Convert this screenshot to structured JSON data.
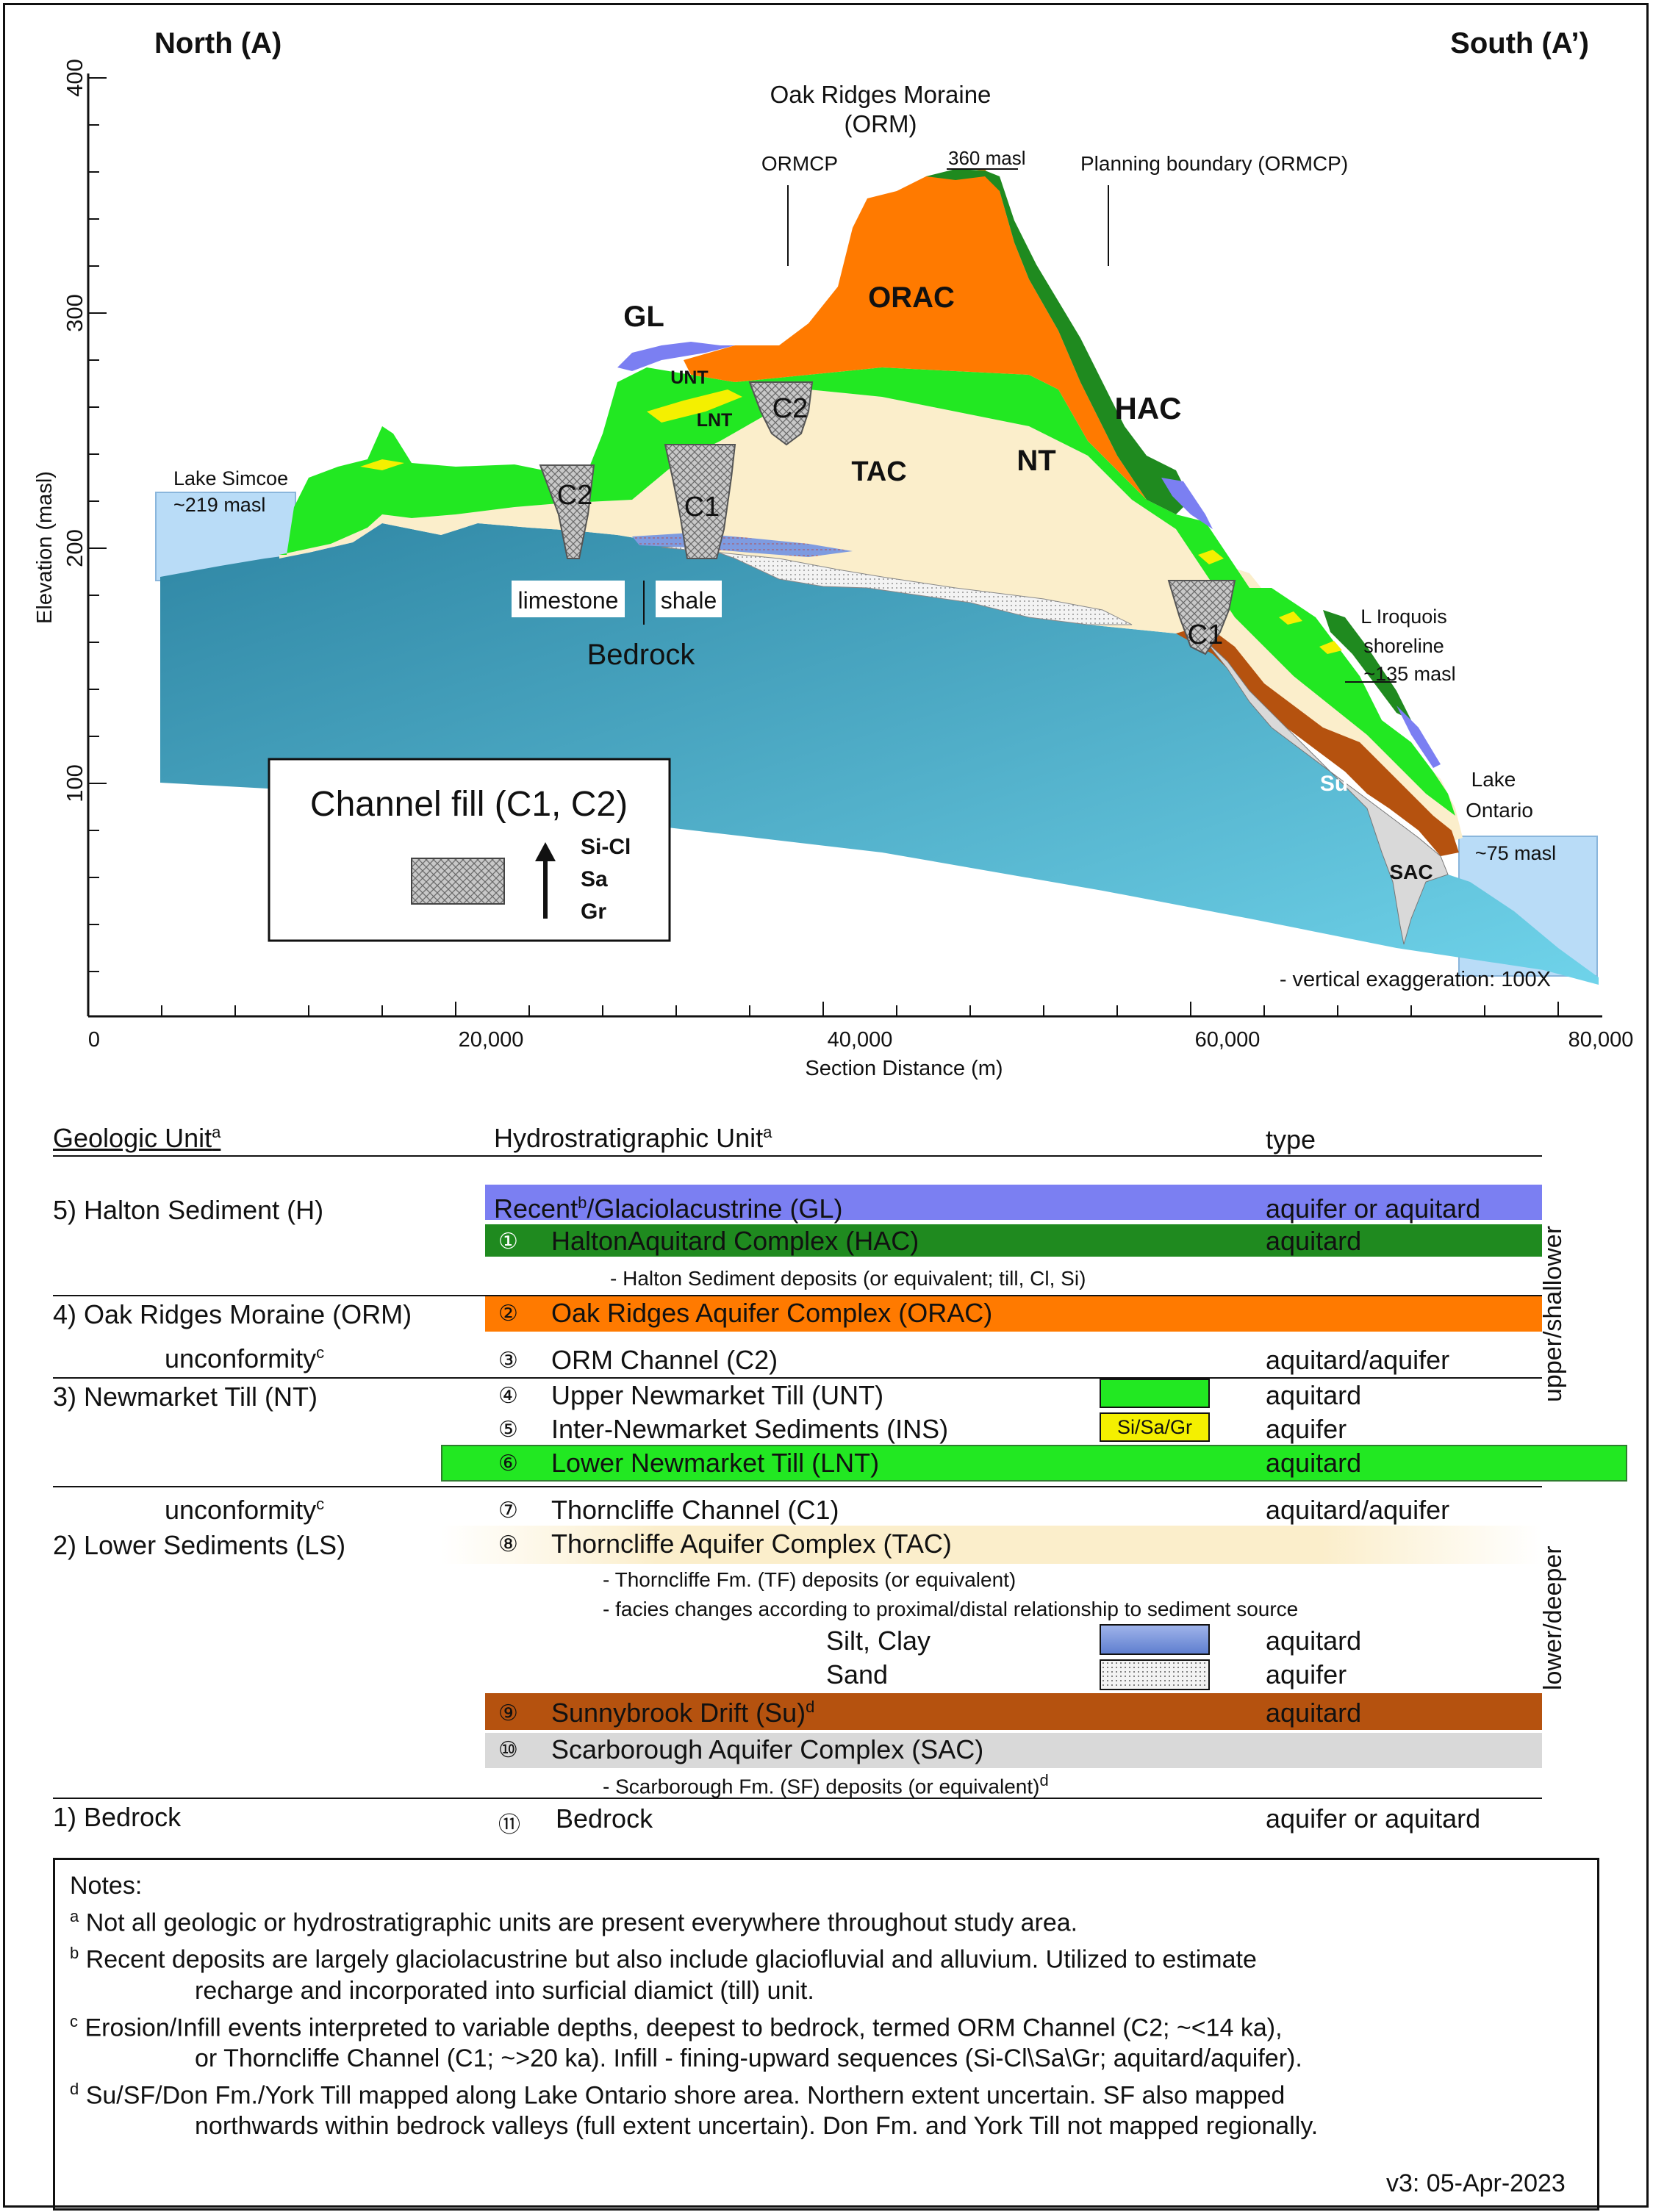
{
  "section": {
    "north_label": "North (A)",
    "south_label": "South (A’)",
    "y_axis_label": "Elevation (masl)",
    "x_axis_label": "Section Distance (m)",
    "y_ticks": [
      "100",
      "200",
      "300",
      "400"
    ],
    "x_ticks": [
      "0",
      "20,000",
      "40,000",
      "60,000",
      "80,000"
    ],
    "annotations": {
      "orm_title_1": "Oak Ridges Moraine",
      "orm_title_2": "(ORM)",
      "ormcp_left": "ORMCP",
      "peak": "360 masl",
      "planning": "Planning boundary (ORMCP)",
      "gl": "GL",
      "unt": "UNT",
      "lnt": "LNT",
      "c2_a": "C2",
      "c2_b": "C2",
      "c1_a": "C1",
      "c1_b": "C1",
      "orac": "ORAC",
      "tac": "TAC",
      "nt": "NT",
      "hac": "HAC",
      "lake_simcoe_1": "Lake Simcoe",
      "lake_simcoe_2": "~219 masl",
      "limestone": "limestone",
      "shale": "shale",
      "bedrock": "Bedrock",
      "iroquois_1": "L Iroquois",
      "iroquois_2": "shoreline",
      "iroquois_3": "~135 masl",
      "su": "Su",
      "sac": "SAC",
      "lake_ontario_1": "Lake",
      "lake_ontario_2": "Ontario",
      "lake_ontario_3": "~75 masl",
      "vert_exag": "- vertical exaggeration: 100X"
    },
    "channel_box": {
      "title": "Channel fill (C1, C2)",
      "seq": [
        "Si-Cl",
        "Sa",
        "Gr"
      ]
    },
    "colors": {
      "gl": "#7b7ff2",
      "hac": "#1f8a1f",
      "orac": "#ff7a00",
      "nt": "#22e822",
      "ins": "#f4f000",
      "tac": "#fbeecb",
      "c_fill": "#bdbdbd",
      "su": "#b5520f",
      "sac": "#d9d9d9",
      "bedrock_dark": "#2f86a4",
      "bedrock_light": "#6fd3ea",
      "lake": "#b9dcf7",
      "siltclay": "#6f8fd6"
    }
  },
  "legend": {
    "headers": {
      "geologic": "Geologic Unit",
      "hydro": "Hydrostratigraphic Unit",
      "type": "type",
      "sup": "a"
    },
    "side_upper": "upper/shallower",
    "side_lower": "lower/deeper",
    "geologic": {
      "g5": "5) Halton Sediment (H)",
      "g4": "4) Oak Ridges Moraine (ORM)",
      "unc1": "unconformity",
      "g3": "3) Newmarket Till (NT)",
      "unc2": "unconformity",
      "g2": "2) Lower Sediments (LS)",
      "g1": "1) Bedrock",
      "unc_sup": "c"
    },
    "rows": [
      {
        "num": "",
        "name_a": "Recent",
        "sup": "b",
        "name_b": "/Glaciolacustrine (GL)",
        "type": "aquifer or aquitard"
      },
      {
        "num": "①",
        "name": "HaltonAquitard Complex (HAC)",
        "type": "aquitard"
      },
      {
        "num": "",
        "name": "- Halton Sediment deposits (or equivalent; till, Cl, Si)",
        "type": ""
      },
      {
        "num": "②",
        "name": "Oak Ridges Aquifer Complex (ORAC)",
        "type": ""
      },
      {
        "num": "③",
        "name": "ORM Channel (C2)",
        "type": "aquitard/aquifer"
      },
      {
        "num": "④",
        "name": "Upper Newmarket Till (UNT)",
        "type": "aquitard"
      },
      {
        "num": "⑤",
        "name": "Inter-Newmarket Sediments (INS)",
        "type": "aquifer",
        "swatch": "Si/Sa/Gr"
      },
      {
        "num": "⑥",
        "name": "Lower Newmarket Till (LNT)",
        "type": "aquitard"
      },
      {
        "num": "⑦",
        "name": "Thorncliffe Channel (C1)",
        "type": "aquitard/aquifer"
      },
      {
        "num": "⑧",
        "name": "Thorncliffe Aquifer Complex (TAC)",
        "type": ""
      },
      {
        "num": "",
        "name": "- Thorncliffe Fm. (TF) deposits (or equivalent)",
        "type": ""
      },
      {
        "num": "",
        "name": "- facies changes according to proximal/distal relationship to sediment source",
        "type": ""
      },
      {
        "num": "",
        "name": "Silt, Clay",
        "type": "aquitard"
      },
      {
        "num": "",
        "name": "Sand",
        "type": "aquifer"
      },
      {
        "num": "⑨",
        "name": "Sunnybrook Drift (Su)",
        "sup": "d",
        "type": "aquitard"
      },
      {
        "num": "⑩",
        "name": "Scarborough Aquifer Complex (SAC)",
        "type": ""
      },
      {
        "num": "",
        "name": "- Scarborough Fm. (SF) deposits (or equivalent)",
        "sup": "d",
        "type": ""
      },
      {
        "num": "⑪",
        "name": "Bedrock",
        "type": "aquifer or aquitard"
      }
    ]
  },
  "notes": {
    "title": "Notes:",
    "a_sup": "a",
    "a": "Not all geologic or hydrostratigraphic units are present everywhere throughout study area.",
    "b_sup": "b",
    "b1": "Recent deposits are largely glaciolacustrine but also include glaciofluvial and alluvium. Utilized to estimate",
    "b2": "recharge and incorporated into surficial diamict (till) unit.",
    "c_sup": "c",
    "c1": "Erosion/Infill events interpreted to variable depths, deepest to bedrock, termed ORM Channel (C2; ~<14 ka),",
    "c2": "or Thorncliffe Channel (C1; ~>20 ka). Infill - fining-upward sequences (Si-Cl\\Sa\\Gr; aquitard/aquifer).",
    "d_sup": "d",
    "d1": "Su/SF/Don Fm./York Till mapped along Lake Ontario shore area. Northern extent uncertain. SF also mapped",
    "d2": "northwards within bedrock valleys (full extent uncertain). Don Fm. and York Till not mapped regionally."
  },
  "version": "v3: 05-Apr-2023"
}
